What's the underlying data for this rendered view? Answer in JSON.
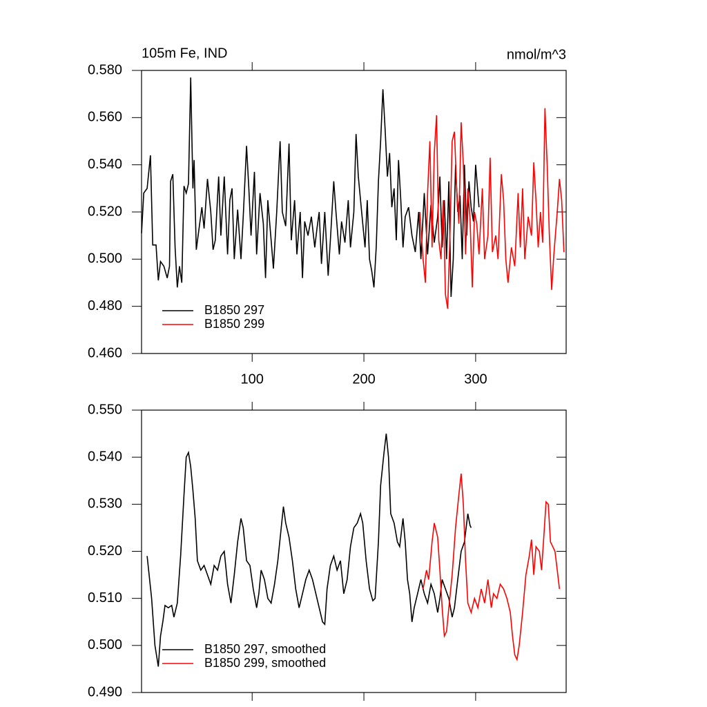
{
  "chart_data": [
    {
      "type": "line",
      "title": "105m Fe, IND",
      "units": "nmol/m^3",
      "xlim": [
        1,
        381
      ],
      "xticks": [
        100,
        200,
        300
      ],
      "xtick_labels": true,
      "ylim": [
        0.46,
        0.58
      ],
      "yticks": [
        {
          "value": 0.46,
          "label": "0.460"
        },
        {
          "value": 0.48,
          "label": "0.480"
        },
        {
          "value": 0.5,
          "label": "0.500"
        },
        {
          "value": 0.52,
          "label": "0.520"
        },
        {
          "value": 0.54,
          "label": "0.540"
        },
        {
          "value": 0.56,
          "label": "0.560"
        },
        {
          "value": 0.58,
          "label": "0.580"
        }
      ],
      "legend": "lower left",
      "series": [
        {
          "name": "B1850 297",
          "color": "#000000",
          "x": [
            1,
            3,
            6,
            9,
            11,
            14,
            16,
            18,
            21,
            24,
            26,
            27,
            29,
            31,
            33,
            35,
            37,
            39,
            41,
            43,
            45,
            47,
            48,
            50,
            53,
            55,
            57,
            60,
            63,
            65,
            67,
            70,
            72,
            75,
            78,
            80,
            82,
            84,
            87,
            90,
            92,
            95,
            97,
            99,
            102,
            104,
            107,
            110,
            112,
            114,
            117,
            119,
            122,
            125,
            127,
            130,
            133,
            135,
            138,
            140,
            143,
            145,
            147,
            150,
            153,
            156,
            158,
            160,
            162,
            165,
            168,
            170,
            173,
            175,
            178,
            180,
            183,
            186,
            188,
            191,
            193,
            195,
            198,
            201,
            203,
            205,
            207,
            209,
            211,
            213,
            215,
            217,
            219,
            221,
            223,
            225,
            227,
            229,
            231,
            233,
            235,
            237,
            240,
            243,
            246,
            249,
            251,
            254,
            257,
            260,
            263,
            266,
            268,
            270,
            272,
            274,
            276,
            278,
            280,
            282,
            284,
            286,
            288,
            290,
            292,
            294,
            296,
            298,
            300,
            303
          ],
          "values": [
            0.511,
            0.528,
            0.53,
            0.544,
            0.506,
            0.506,
            0.491,
            0.499,
            0.497,
            0.492,
            0.497,
            0.533,
            0.536,
            0.505,
            0.488,
            0.497,
            0.49,
            0.531,
            0.528,
            0.532,
            0.577,
            0.53,
            0.542,
            0.504,
            0.515,
            0.522,
            0.513,
            0.534,
            0.52,
            0.504,
            0.508,
            0.535,
            0.51,
            0.535,
            0.502,
            0.525,
            0.53,
            0.5,
            0.521,
            0.5,
            0.518,
            0.548,
            0.53,
            0.51,
            0.537,
            0.502,
            0.528,
            0.515,
            0.492,
            0.525,
            0.508,
            0.496,
            0.52,
            0.55,
            0.52,
            0.514,
            0.549,
            0.508,
            0.525,
            0.502,
            0.52,
            0.492,
            0.516,
            0.51,
            0.518,
            0.505,
            0.513,
            0.52,
            0.498,
            0.52,
            0.493,
            0.508,
            0.533,
            0.52,
            0.502,
            0.516,
            0.507,
            0.525,
            0.505,
            0.52,
            0.553,
            0.535,
            0.52,
            0.505,
            0.525,
            0.5,
            0.495,
            0.488,
            0.505,
            0.533,
            0.55,
            0.572,
            0.555,
            0.535,
            0.545,
            0.522,
            0.53,
            0.508,
            0.542,
            0.525,
            0.505,
            0.518,
            0.522,
            0.51,
            0.503,
            0.52,
            0.5,
            0.528,
            0.502,
            0.523,
            0.507,
            0.518,
            0.535,
            0.505,
            0.525,
            0.5,
            0.533,
            0.484,
            0.5,
            0.54,
            0.52,
            0.527,
            0.5,
            0.54,
            0.51,
            0.533,
            0.522,
            0.516,
            0.54,
            0.522
          ]
        },
        {
          "name": "B1850 299",
          "color": "#ff0000",
          "x": [
            250,
            253,
            255,
            257,
            259,
            261,
            263,
            265,
            267,
            269,
            271,
            273,
            275,
            277,
            279,
            281,
            283,
            285,
            287,
            289,
            291,
            293,
            295,
            297,
            299,
            301,
            303,
            306,
            308,
            311,
            313,
            315,
            318,
            320,
            323,
            325,
            327,
            329,
            332,
            335,
            338,
            340,
            342,
            344,
            347,
            350,
            352,
            354,
            356,
            358,
            360,
            362,
            364,
            366,
            368,
            370,
            373,
            375,
            377,
            379
          ],
          "values": [
            0.52,
            0.5,
            0.49,
            0.528,
            0.55,
            0.505,
            0.545,
            0.561,
            0.508,
            0.5,
            0.525,
            0.485,
            0.479,
            0.51,
            0.55,
            0.554,
            0.53,
            0.515,
            0.558,
            0.54,
            0.502,
            0.53,
            0.517,
            0.488,
            0.52,
            0.515,
            0.502,
            0.53,
            0.5,
            0.51,
            0.543,
            0.503,
            0.51,
            0.5,
            0.536,
            0.525,
            0.5,
            0.49,
            0.505,
            0.497,
            0.528,
            0.505,
            0.53,
            0.5,
            0.518,
            0.51,
            0.541,
            0.525,
            0.505,
            0.52,
            0.507,
            0.564,
            0.54,
            0.51,
            0.487,
            0.502,
            0.52,
            0.534,
            0.525,
            0.503
          ]
        }
      ]
    },
    {
      "type": "line",
      "xlim": [
        1,
        381
      ],
      "xticks": [
        100,
        200,
        300
      ],
      "xtick_labels": false,
      "ylim": [
        0.49,
        0.55
      ],
      "yticks": [
        {
          "value": 0.49,
          "label": "0.490"
        },
        {
          "value": 0.5,
          "label": "0.500"
        },
        {
          "value": 0.51,
          "label": "0.510"
        },
        {
          "value": 0.52,
          "label": "0.520"
        },
        {
          "value": 0.53,
          "label": "0.530"
        },
        {
          "value": 0.54,
          "label": "0.540"
        },
        {
          "value": 0.55,
          "label": "0.550"
        }
      ],
      "legend": "lower left",
      "series": [
        {
          "name": "B1850 297, smoothed",
          "color": "#000000",
          "x": [
            6,
            10,
            13,
            16,
            18,
            20,
            22,
            25,
            28,
            30,
            33,
            36,
            39,
            41,
            43,
            45,
            47,
            49,
            51,
            54,
            57,
            60,
            63,
            66,
            69,
            72,
            75,
            78,
            81,
            84,
            87,
            90,
            92,
            95,
            98,
            101,
            104,
            106,
            108,
            111,
            114,
            117,
            120,
            123,
            126,
            128,
            130,
            133,
            136,
            139,
            142,
            145,
            148,
            151,
            154,
            157,
            160,
            163,
            165,
            167,
            170,
            173,
            176,
            179,
            182,
            185,
            188,
            191,
            194,
            197,
            199,
            202,
            205,
            208,
            210,
            213,
            215,
            218,
            220,
            222,
            224,
            227,
            230,
            232,
            235,
            237,
            239,
            241,
            243,
            245,
            248,
            251,
            254,
            257,
            260,
            263,
            266,
            268,
            270,
            273,
            276,
            279,
            281,
            284,
            287,
            290,
            293,
            295,
            296
          ],
          "values": [
            0.519,
            0.51,
            0.5,
            0.4955,
            0.502,
            0.505,
            0.5085,
            0.508,
            0.5085,
            0.506,
            0.509,
            0.519,
            0.532,
            0.54,
            0.541,
            0.538,
            0.533,
            0.527,
            0.518,
            0.516,
            0.517,
            0.515,
            0.513,
            0.517,
            0.516,
            0.519,
            0.52,
            0.513,
            0.509,
            0.515,
            0.522,
            0.527,
            0.525,
            0.518,
            0.517,
            0.512,
            0.508,
            0.511,
            0.516,
            0.514,
            0.51,
            0.509,
            0.513,
            0.518,
            0.525,
            0.5295,
            0.526,
            0.523,
            0.518,
            0.512,
            0.508,
            0.511,
            0.514,
            0.516,
            0.514,
            0.511,
            0.508,
            0.505,
            0.5045,
            0.512,
            0.517,
            0.519,
            0.516,
            0.518,
            0.511,
            0.514,
            0.521,
            0.525,
            0.526,
            0.528,
            0.526,
            0.518,
            0.512,
            0.5095,
            0.51,
            0.522,
            0.534,
            0.541,
            0.545,
            0.54,
            0.528,
            0.526,
            0.522,
            0.521,
            0.527,
            0.522,
            0.514,
            0.511,
            0.505,
            0.508,
            0.511,
            0.514,
            0.511,
            0.509,
            0.513,
            0.511,
            0.507,
            0.51,
            0.514,
            0.512,
            0.51,
            0.506,
            0.508,
            0.514,
            0.52,
            0.522,
            0.528,
            0.5255,
            0.525
          ]
        },
        {
          "name": "B1850 299, smoothed",
          "color": "#ff0000",
          "x": [
            253,
            256,
            258,
            261,
            263,
            266,
            268,
            270,
            272,
            274,
            276,
            279,
            282,
            285,
            287,
            289,
            291,
            293,
            296,
            299,
            302,
            305,
            308,
            311,
            314,
            316,
            319,
            322,
            325,
            328,
            331,
            333,
            335,
            337,
            339,
            342,
            345,
            348,
            350,
            352,
            354,
            357,
            359,
            361,
            363,
            365,
            367,
            369,
            371,
            373,
            375
          ],
          "values": [
            0.512,
            0.516,
            0.514,
            0.522,
            0.526,
            0.523,
            0.516,
            0.508,
            0.502,
            0.503,
            0.508,
            0.515,
            0.525,
            0.532,
            0.5365,
            0.53,
            0.518,
            0.509,
            0.507,
            0.51,
            0.508,
            0.512,
            0.509,
            0.514,
            0.508,
            0.511,
            0.51,
            0.513,
            0.512,
            0.51,
            0.507,
            0.502,
            0.498,
            0.497,
            0.5,
            0.507,
            0.515,
            0.519,
            0.5225,
            0.515,
            0.521,
            0.52,
            0.516,
            0.523,
            0.5305,
            0.53,
            0.522,
            0.521,
            0.52,
            0.516,
            0.512
          ]
        }
      ]
    }
  ]
}
